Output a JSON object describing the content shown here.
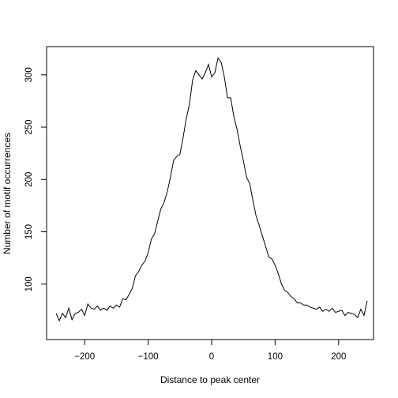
{
  "chart_data": {
    "type": "line",
    "title": "",
    "xlabel": "Distance to peak center",
    "ylabel": "Number of motif occurrences",
    "xlim": [
      -260,
      255
    ],
    "ylim": [
      47,
      327
    ],
    "xticks": [
      -200,
      -100,
      0,
      100,
      200
    ],
    "yticks": [
      100,
      150,
      200,
      250,
      300
    ],
    "xtick_labels": [
      "−200",
      "−100",
      "0",
      "100",
      "200"
    ],
    "ytick_labels": [
      "100",
      "150",
      "200",
      "250",
      "300"
    ],
    "grid": false,
    "legend": "none",
    "line_color": "#000000",
    "series": [
      {
        "x": [
          -245,
          -240,
          -235,
          -230,
          -225,
          -220,
          -215,
          -210,
          -205,
          -200,
          -195,
          -190,
          -185,
          -180,
          -175,
          -170,
          -165,
          -160,
          -155,
          -150,
          -145,
          -140,
          -135,
          -130,
          -125,
          -120,
          -115,
          -110,
          -105,
          -100,
          -95,
          -90,
          -85,
          -80,
          -75,
          -70,
          -65,
          -60,
          -55,
          -50,
          -45,
          -40,
          -35,
          -30,
          -25,
          -20,
          -15,
          -10,
          -5,
          0,
          5,
          10,
          15,
          20,
          25,
          30,
          35,
          40,
          45,
          50,
          55,
          60,
          65,
          70,
          75,
          80,
          85,
          90,
          95,
          100,
          105,
          110,
          115,
          120,
          125,
          130,
          135,
          140,
          145,
          150,
          155,
          160,
          165,
          170,
          175,
          180,
          185,
          190,
          195,
          200,
          205,
          210,
          215,
          220,
          225,
          230,
          235,
          240,
          245
        ],
        "values": [
          72,
          65,
          72,
          68,
          77,
          66,
          72,
          73,
          76,
          70,
          81,
          77,
          76,
          79,
          75,
          77,
          75,
          79,
          77,
          80,
          78,
          86,
          85,
          90,
          96,
          108,
          112,
          118,
          122,
          130,
          143,
          148,
          160,
          172,
          178,
          188,
          202,
          218,
          222,
          224,
          240,
          258,
          272,
          295,
          304,
          300,
          296,
          302,
          310,
          298,
          302,
          316,
          312,
          298,
          278,
          278,
          260,
          248,
          232,
          218,
          202,
          196,
          180,
          165,
          156,
          146,
          136,
          126,
          124,
          118,
          110,
          100,
          94,
          92,
          88,
          86,
          82,
          82,
          80,
          80,
          78,
          77,
          76,
          78,
          74,
          76,
          74,
          77,
          73,
          74,
          75,
          70,
          73,
          72,
          71,
          68,
          76,
          70,
          84
        ]
      }
    ]
  }
}
